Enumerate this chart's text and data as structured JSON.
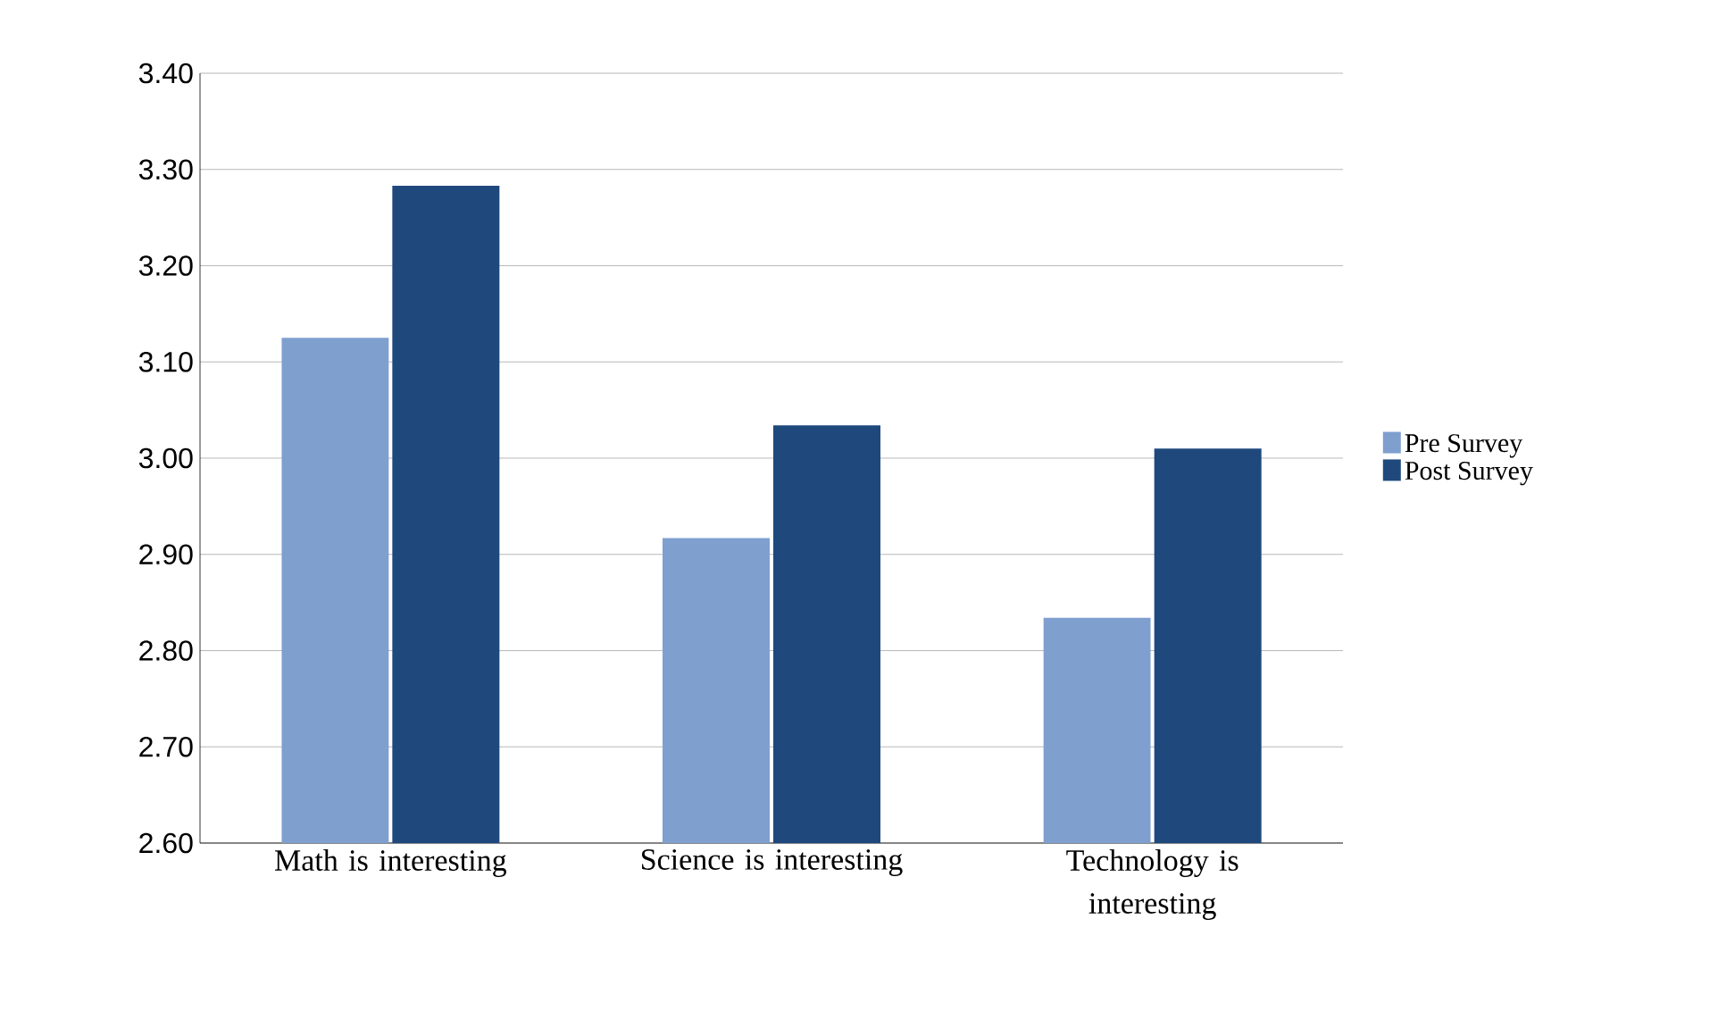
{
  "chart_data": {
    "type": "bar",
    "categories": [
      "Math is interesting",
      "Science is interesting",
      "Technology is interesting"
    ],
    "series": [
      {
        "name": "Pre Survey",
        "color": "#7f9fcf",
        "values": [
          3.125,
          2.917,
          2.834
        ]
      },
      {
        "name": "Post Survey",
        "color": "#1f497d",
        "values": [
          3.283,
          3.034,
          3.01
        ]
      }
    ],
    "ylim": [
      2.6,
      3.4
    ],
    "yticks": [
      {
        "value": 2.6,
        "label": "2.60"
      },
      {
        "value": 2.7,
        "label": "2.70"
      },
      {
        "value": 2.8,
        "label": "2.80"
      },
      {
        "value": 2.9,
        "label": "2.90"
      },
      {
        "value": 3.0,
        "label": "3.00"
      },
      {
        "value": 3.1,
        "label": "3.10"
      },
      {
        "value": 3.2,
        "label": "3.20"
      },
      {
        "value": 3.3,
        "label": "3.30"
      },
      {
        "value": 3.4,
        "label": "3.40"
      }
    ],
    "grid": "y",
    "legend": "right"
  }
}
